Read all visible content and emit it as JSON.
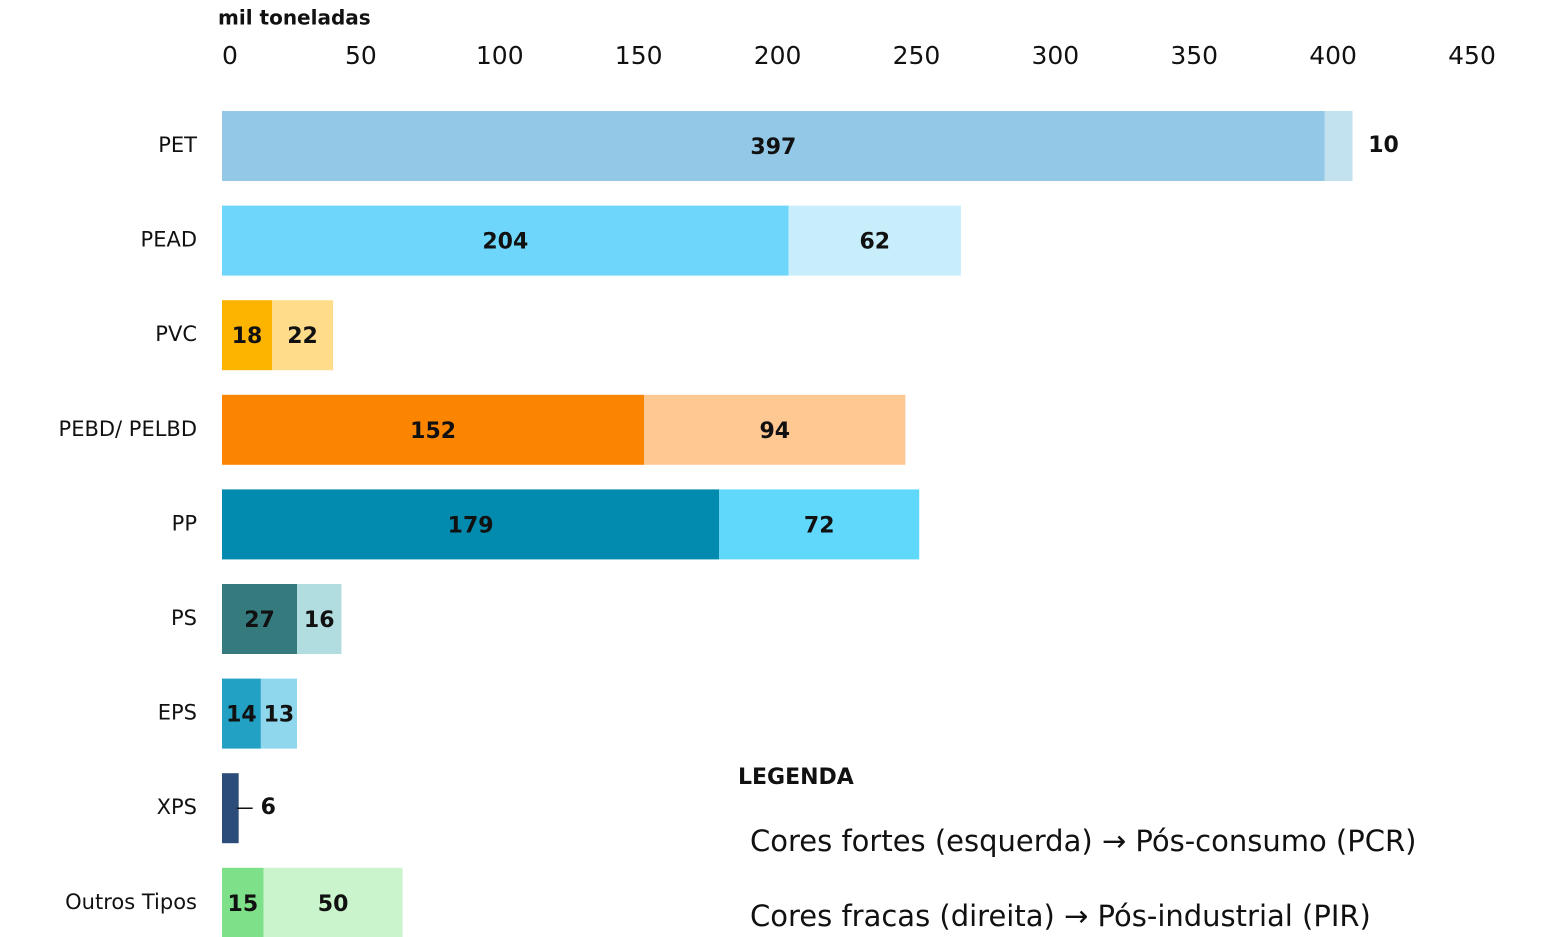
{
  "chart_data": {
    "type": "bar",
    "orientation": "horizontal",
    "stacked": true,
    "xlabel": "mil toneladas",
    "categories": [
      "PET",
      "PEAD",
      "PVC",
      "PEBD/ PELBD",
      "PP",
      "PS",
      "EPS",
      "XPS",
      "Outros Tipos"
    ],
    "series": [
      {
        "name": "Cores fortes (esquerda) → Pós-consumo (PCR)",
        "colors": [
          "#93c9e6",
          "#6dd6fa",
          "#fcb400",
          "#fb8500",
          "#028bae",
          "#357b7e",
          "#22a1c4",
          "#2c4d7a",
          "#7fe08a"
        ],
        "values": [
          397,
          204,
          18,
          152,
          179,
          27,
          14,
          6,
          15
        ]
      },
      {
        "name": "Cores fracas (direita) → Pós-industrial (PIR)",
        "colors": [
          "#c3e2f0",
          "#c8eefc",
          "#fedc8a",
          "#fec893",
          "#5fd8fc",
          "#b2dde0",
          "#8fd7ec",
          null,
          "#c9f4cc"
        ],
        "values": [
          10,
          62,
          22,
          94,
          72,
          16,
          13,
          null,
          50
        ]
      }
    ],
    "legend_title": "LEGENDA",
    "xlim": [
      0,
      450
    ],
    "xticks": [
      0,
      50,
      100,
      150,
      200,
      250,
      300,
      350,
      400,
      450
    ],
    "grid": false
  }
}
